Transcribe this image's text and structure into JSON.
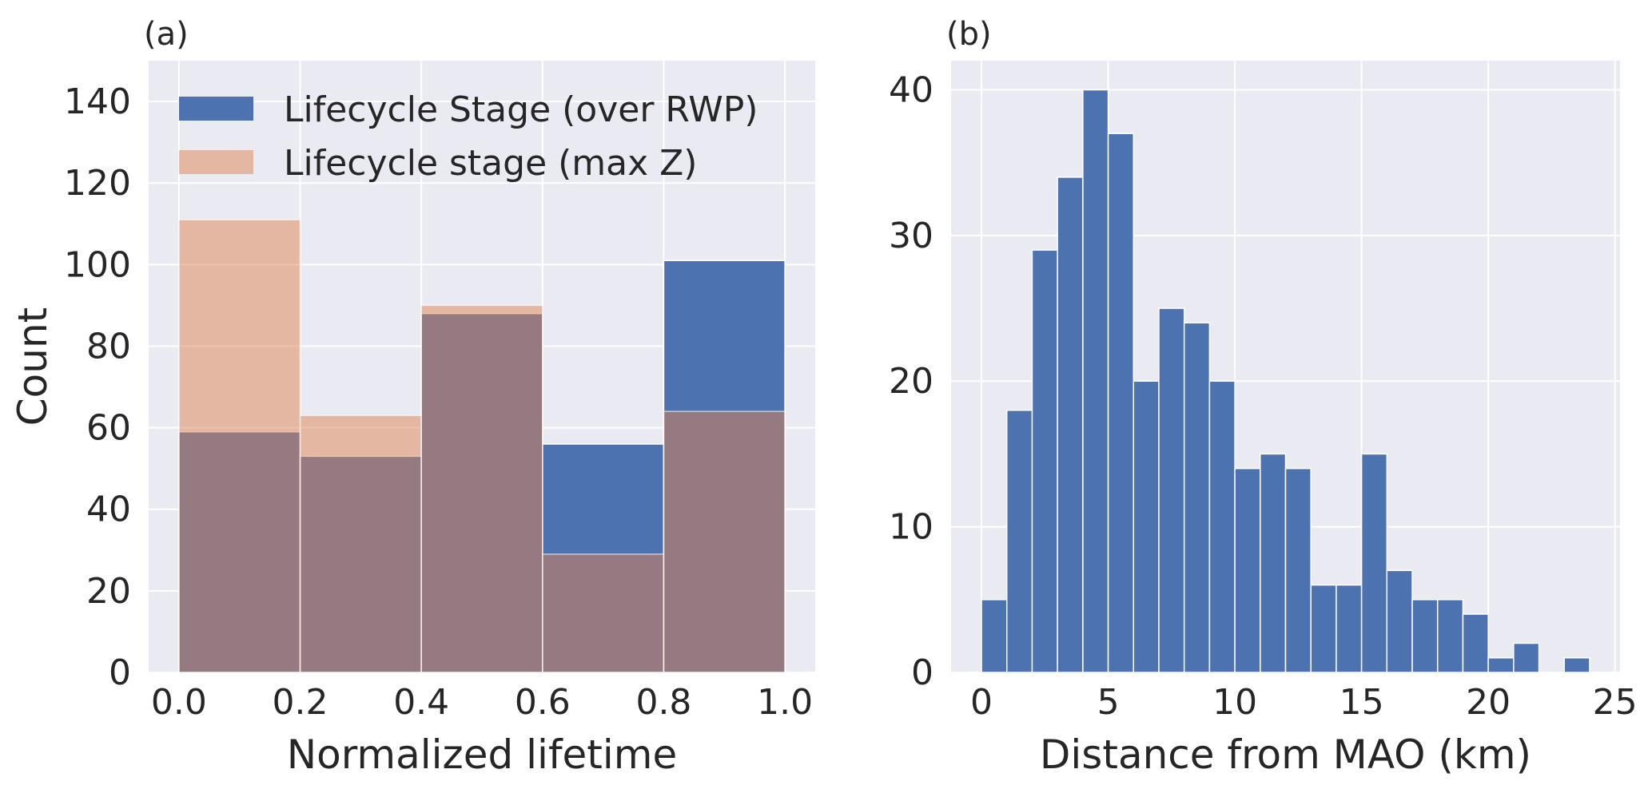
{
  "chart_data": [
    {
      "type": "bar",
      "panel_label": "(a)",
      "xlabel": "Normalized lifetime",
      "ylabel": "Count",
      "xlim": [
        -0.05,
        1.05
      ],
      "ylim": [
        0,
        150
      ],
      "xticks": [
        0.0,
        0.2,
        0.4,
        0.6,
        0.8,
        1.0
      ],
      "xtick_labels": [
        "0.0",
        "0.2",
        "0.4",
        "0.6",
        "0.8",
        "1.0"
      ],
      "yticks": [
        0,
        20,
        40,
        60,
        80,
        100,
        120,
        140
      ],
      "ytick_labels": [
        "0",
        "20",
        "40",
        "60",
        "80",
        "100",
        "120",
        "140"
      ],
      "grid": true,
      "legend_position": "top-left",
      "bin_edges": [
        0.0,
        0.2,
        0.4,
        0.6,
        0.8,
        1.0
      ],
      "series": [
        {
          "name": "Lifecycle Stage (over RWP)",
          "values": [
            59,
            53,
            88,
            56,
            101
          ],
          "color": "#4c72b0",
          "opacity": 1
        },
        {
          "name": "Lifecycle stage (max Z)",
          "values": [
            111,
            63,
            90,
            29,
            64
          ],
          "color": "#dd8452",
          "opacity": 0.5
        }
      ]
    },
    {
      "type": "bar",
      "panel_label": "(b)",
      "xlabel": "Distance from MAO (km)",
      "ylabel": "",
      "xlim": [
        -1.2,
        25.2
      ],
      "ylim": [
        0,
        42
      ],
      "xticks": [
        0,
        5,
        10,
        15,
        20,
        25
      ],
      "xtick_labels": [
        "0",
        "5",
        "10",
        "15",
        "20",
        "25"
      ],
      "yticks": [
        0,
        10,
        20,
        30,
        40
      ],
      "ytick_labels": [
        "0",
        "10",
        "20",
        "30",
        "40"
      ],
      "grid": true,
      "bin_edges": [
        0,
        1,
        2,
        3,
        4,
        5,
        6,
        7,
        8,
        9,
        10,
        11,
        12,
        13,
        14,
        15,
        16,
        17,
        18,
        19,
        20,
        21,
        22,
        23,
        24,
        25
      ],
      "series": [
        {
          "values": [
            5,
            18,
            29,
            34,
            40,
            37,
            20,
            25,
            24,
            20,
            14,
            15,
            14,
            6,
            6,
            15,
            7,
            5,
            5,
            4,
            1,
            2,
            0,
            1,
            0
          ],
          "color": "#4c72b0",
          "opacity": 1
        }
      ]
    }
  ]
}
